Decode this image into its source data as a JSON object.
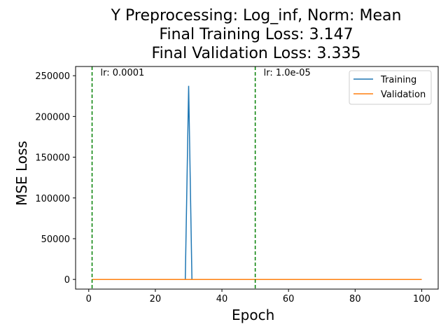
{
  "chart_data": {
    "type": "line",
    "title_lines": [
      "Y Preprocessing: Log_inf, Norm: Mean",
      "Final Training Loss: 3.147",
      "Final Validation Loss: 3.335"
    ],
    "xlabel": "Epoch",
    "ylabel": "MSE Loss",
    "xlim": [
      -3.95,
      104.95
    ],
    "ylim": [
      -11873,
      261315
    ],
    "xticks": [
      0,
      20,
      40,
      60,
      80,
      100
    ],
    "yticks": [
      0,
      50000,
      100000,
      150000,
      200000,
      250000
    ],
    "grid": false,
    "legend_position": "top-right",
    "series": [
      {
        "name": "Training",
        "color": "#1f77b4",
        "x": [
          1,
          29,
          30,
          31,
          100
        ],
        "y": [
          3.2,
          3.2,
          237560,
          3.2,
          3.147
        ]
      },
      {
        "name": "Validation",
        "color": "#ff7f0e",
        "x": [
          1,
          100
        ],
        "y": [
          3.3,
          3.335
        ]
      }
    ],
    "lr_markers": [
      {
        "epoch": 1,
        "label": "lr: 0.0001",
        "color": "#008000"
      },
      {
        "epoch": 50,
        "label": "lr: 1.0e-05",
        "color": "#008000"
      }
    ]
  }
}
